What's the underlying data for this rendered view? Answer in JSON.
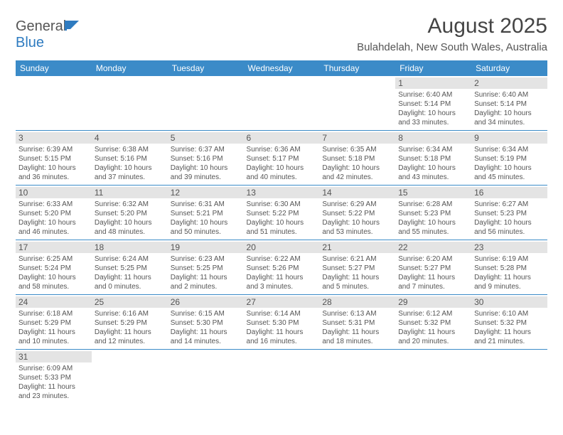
{
  "logo": {
    "text1": "General",
    "text2": "Blue"
  },
  "title": "August 2025",
  "location": "Bulahdelah, New South Wales, Australia",
  "colors": {
    "header_bg": "#3b8bc8",
    "header_fg": "#ffffff",
    "daynum_bg": "#e4e4e4",
    "daynum_fg": "#555555",
    "text": "#555555",
    "row_border": "#3b8bc8",
    "logo_blue": "#2e7bc0",
    "logo_gray": "#555555"
  },
  "weekdays": [
    "Sunday",
    "Monday",
    "Tuesday",
    "Wednesday",
    "Thursday",
    "Friday",
    "Saturday"
  ],
  "weeks": [
    [
      null,
      null,
      null,
      null,
      null,
      {
        "num": "1",
        "sunrise": "Sunrise: 6:40 AM",
        "sunset": "Sunset: 5:14 PM",
        "daylight": "Daylight: 10 hours and 33 minutes."
      },
      {
        "num": "2",
        "sunrise": "Sunrise: 6:40 AM",
        "sunset": "Sunset: 5:14 PM",
        "daylight": "Daylight: 10 hours and 34 minutes."
      }
    ],
    [
      {
        "num": "3",
        "sunrise": "Sunrise: 6:39 AM",
        "sunset": "Sunset: 5:15 PM",
        "daylight": "Daylight: 10 hours and 36 minutes."
      },
      {
        "num": "4",
        "sunrise": "Sunrise: 6:38 AM",
        "sunset": "Sunset: 5:16 PM",
        "daylight": "Daylight: 10 hours and 37 minutes."
      },
      {
        "num": "5",
        "sunrise": "Sunrise: 6:37 AM",
        "sunset": "Sunset: 5:16 PM",
        "daylight": "Daylight: 10 hours and 39 minutes."
      },
      {
        "num": "6",
        "sunrise": "Sunrise: 6:36 AM",
        "sunset": "Sunset: 5:17 PM",
        "daylight": "Daylight: 10 hours and 40 minutes."
      },
      {
        "num": "7",
        "sunrise": "Sunrise: 6:35 AM",
        "sunset": "Sunset: 5:18 PM",
        "daylight": "Daylight: 10 hours and 42 minutes."
      },
      {
        "num": "8",
        "sunrise": "Sunrise: 6:34 AM",
        "sunset": "Sunset: 5:18 PM",
        "daylight": "Daylight: 10 hours and 43 minutes."
      },
      {
        "num": "9",
        "sunrise": "Sunrise: 6:34 AM",
        "sunset": "Sunset: 5:19 PM",
        "daylight": "Daylight: 10 hours and 45 minutes."
      }
    ],
    [
      {
        "num": "10",
        "sunrise": "Sunrise: 6:33 AM",
        "sunset": "Sunset: 5:20 PM",
        "daylight": "Daylight: 10 hours and 46 minutes."
      },
      {
        "num": "11",
        "sunrise": "Sunrise: 6:32 AM",
        "sunset": "Sunset: 5:20 PM",
        "daylight": "Daylight: 10 hours and 48 minutes."
      },
      {
        "num": "12",
        "sunrise": "Sunrise: 6:31 AM",
        "sunset": "Sunset: 5:21 PM",
        "daylight": "Daylight: 10 hours and 50 minutes."
      },
      {
        "num": "13",
        "sunrise": "Sunrise: 6:30 AM",
        "sunset": "Sunset: 5:22 PM",
        "daylight": "Daylight: 10 hours and 51 minutes."
      },
      {
        "num": "14",
        "sunrise": "Sunrise: 6:29 AM",
        "sunset": "Sunset: 5:22 PM",
        "daylight": "Daylight: 10 hours and 53 minutes."
      },
      {
        "num": "15",
        "sunrise": "Sunrise: 6:28 AM",
        "sunset": "Sunset: 5:23 PM",
        "daylight": "Daylight: 10 hours and 55 minutes."
      },
      {
        "num": "16",
        "sunrise": "Sunrise: 6:27 AM",
        "sunset": "Sunset: 5:23 PM",
        "daylight": "Daylight: 10 hours and 56 minutes."
      }
    ],
    [
      {
        "num": "17",
        "sunrise": "Sunrise: 6:25 AM",
        "sunset": "Sunset: 5:24 PM",
        "daylight": "Daylight: 10 hours and 58 minutes."
      },
      {
        "num": "18",
        "sunrise": "Sunrise: 6:24 AM",
        "sunset": "Sunset: 5:25 PM",
        "daylight": "Daylight: 11 hours and 0 minutes."
      },
      {
        "num": "19",
        "sunrise": "Sunrise: 6:23 AM",
        "sunset": "Sunset: 5:25 PM",
        "daylight": "Daylight: 11 hours and 2 minutes."
      },
      {
        "num": "20",
        "sunrise": "Sunrise: 6:22 AM",
        "sunset": "Sunset: 5:26 PM",
        "daylight": "Daylight: 11 hours and 3 minutes."
      },
      {
        "num": "21",
        "sunrise": "Sunrise: 6:21 AM",
        "sunset": "Sunset: 5:27 PM",
        "daylight": "Daylight: 11 hours and 5 minutes."
      },
      {
        "num": "22",
        "sunrise": "Sunrise: 6:20 AM",
        "sunset": "Sunset: 5:27 PM",
        "daylight": "Daylight: 11 hours and 7 minutes."
      },
      {
        "num": "23",
        "sunrise": "Sunrise: 6:19 AM",
        "sunset": "Sunset: 5:28 PM",
        "daylight": "Daylight: 11 hours and 9 minutes."
      }
    ],
    [
      {
        "num": "24",
        "sunrise": "Sunrise: 6:18 AM",
        "sunset": "Sunset: 5:29 PM",
        "daylight": "Daylight: 11 hours and 10 minutes."
      },
      {
        "num": "25",
        "sunrise": "Sunrise: 6:16 AM",
        "sunset": "Sunset: 5:29 PM",
        "daylight": "Daylight: 11 hours and 12 minutes."
      },
      {
        "num": "26",
        "sunrise": "Sunrise: 6:15 AM",
        "sunset": "Sunset: 5:30 PM",
        "daylight": "Daylight: 11 hours and 14 minutes."
      },
      {
        "num": "27",
        "sunrise": "Sunrise: 6:14 AM",
        "sunset": "Sunset: 5:30 PM",
        "daylight": "Daylight: 11 hours and 16 minutes."
      },
      {
        "num": "28",
        "sunrise": "Sunrise: 6:13 AM",
        "sunset": "Sunset: 5:31 PM",
        "daylight": "Daylight: 11 hours and 18 minutes."
      },
      {
        "num": "29",
        "sunrise": "Sunrise: 6:12 AM",
        "sunset": "Sunset: 5:32 PM",
        "daylight": "Daylight: 11 hours and 20 minutes."
      },
      {
        "num": "30",
        "sunrise": "Sunrise: 6:10 AM",
        "sunset": "Sunset: 5:32 PM",
        "daylight": "Daylight: 11 hours and 21 minutes."
      }
    ],
    [
      {
        "num": "31",
        "sunrise": "Sunrise: 6:09 AM",
        "sunset": "Sunset: 5:33 PM",
        "daylight": "Daylight: 11 hours and 23 minutes."
      },
      null,
      null,
      null,
      null,
      null,
      null
    ]
  ]
}
